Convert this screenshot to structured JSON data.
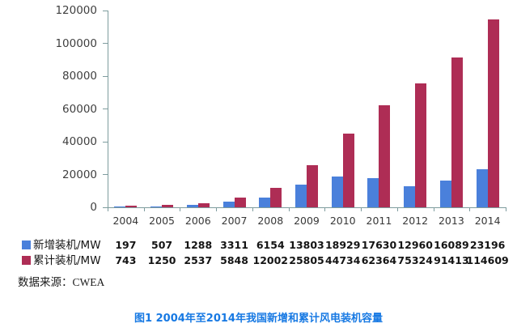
{
  "figure": {
    "source_note": "数据来源：CWEA",
    "caption": "图1 2004年至2014年我国新增和累计风电装机容量",
    "caption_color": "#1779e3"
  },
  "chart_data": {
    "type": "bar",
    "title": "",
    "xlabel": "",
    "ylabel": "",
    "categories": [
      "2004",
      "2005",
      "2006",
      "2007",
      "2008",
      "2009",
      "2010",
      "2011",
      "2012",
      "2013",
      "2014"
    ],
    "series": [
      {
        "name": "新增装机/MW",
        "color": "#4a80db",
        "values": [
          197,
          507,
          1288,
          3311,
          6154,
          13803,
          18929,
          17630,
          12960,
          16089,
          23196
        ]
      },
      {
        "name": "累计装机/MW",
        "color": "#ae2d55",
        "values": [
          743,
          1250,
          2537,
          5848,
          12002,
          25805,
          44734,
          62364,
          75324,
          91413,
          114609
        ]
      }
    ],
    "ylim": [
      0,
      120000
    ],
    "yticks": [
      0,
      20000,
      40000,
      60000,
      80000,
      100000,
      120000
    ],
    "grid": false,
    "legend_position": "bottom-left-table",
    "axis_color": "#7e9c9e"
  }
}
